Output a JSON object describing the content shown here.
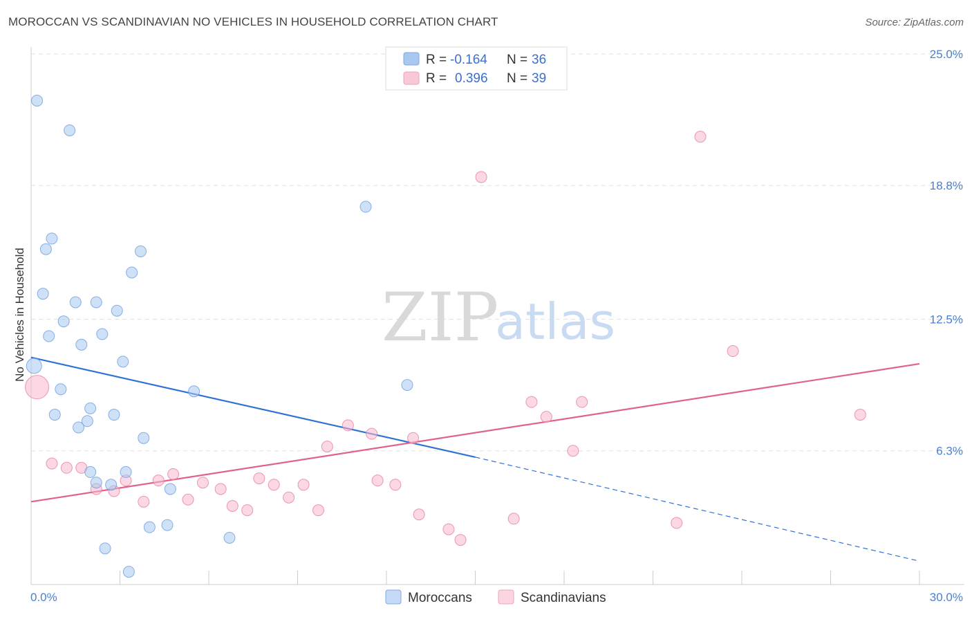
{
  "header": {
    "title": "MOROCCAN VS SCANDINAVIAN NO VEHICLES IN HOUSEHOLD CORRELATION CHART",
    "source": "Source: ZipAtlas.com"
  },
  "watermark": {
    "zip": "ZIP",
    "atlas": "atlas"
  },
  "legend": {
    "rows": [
      {
        "r_label": "R =",
        "r_value": "-0.164",
        "n_label": "N =",
        "n_value": "36",
        "color": "#a8c8f0"
      },
      {
        "r_label": "R =",
        "r_value": "0.396",
        "n_label": "N =",
        "n_value": "39",
        "color": "#f8b8cc"
      }
    ]
  },
  "bottom_legend": {
    "items": [
      {
        "label": "Moroccans",
        "color": "#a8c8f0"
      },
      {
        "label": "Scandinavians",
        "color": "#f8b8cc"
      }
    ]
  },
  "chart_data": {
    "type": "scatter",
    "title": "MOROCCAN VS SCANDINAVIAN NO VEHICLES IN HOUSEHOLD CORRELATION CHART",
    "xlabel": "",
    "ylabel": "No Vehicles in Household",
    "xlim": [
      0,
      30
    ],
    "ylim": [
      0,
      25
    ],
    "x_tick_labels": [
      "0.0%",
      "30.0%"
    ],
    "y_ticks": [
      6.3,
      12.5,
      18.8,
      25.0
    ],
    "y_tick_labels": [
      "6.3%",
      "12.5%",
      "18.8%",
      "25.0%"
    ],
    "grid": "horizontal dashed",
    "legend_position": "top-center",
    "series": [
      {
        "name": "Moroccans",
        "color": "#6b9ee0",
        "fill": "#a8c8f0",
        "trend": {
          "x": [
            0,
            15
          ],
          "y": [
            10.7,
            6.0
          ],
          "dashed_to": [
            30,
            1.1
          ]
        },
        "points": [
          {
            "x": 0.2,
            "y": 22.8
          },
          {
            "x": 1.3,
            "y": 21.4
          },
          {
            "x": 11.3,
            "y": 17.8
          },
          {
            "x": 0.7,
            "y": 16.3
          },
          {
            "x": 0.5,
            "y": 15.8
          },
          {
            "x": 3.7,
            "y": 15.7
          },
          {
            "x": 3.4,
            "y": 14.7
          },
          {
            "x": 0.4,
            "y": 13.7
          },
          {
            "x": 1.5,
            "y": 13.3
          },
          {
            "x": 2.2,
            "y": 13.3
          },
          {
            "x": 2.9,
            "y": 12.9
          },
          {
            "x": 1.1,
            "y": 12.4
          },
          {
            "x": 0.6,
            "y": 11.7
          },
          {
            "x": 2.4,
            "y": 11.8
          },
          {
            "x": 1.7,
            "y": 11.3
          },
          {
            "x": 3.1,
            "y": 10.5
          },
          {
            "x": 0.1,
            "y": 10.3
          },
          {
            "x": 12.7,
            "y": 9.4
          },
          {
            "x": 1.0,
            "y": 9.2
          },
          {
            "x": 5.5,
            "y": 9.1
          },
          {
            "x": 2.0,
            "y": 8.3
          },
          {
            "x": 0.8,
            "y": 8.0
          },
          {
            "x": 2.8,
            "y": 8.0
          },
          {
            "x": 1.9,
            "y": 7.7
          },
          {
            "x": 1.6,
            "y": 7.4
          },
          {
            "x": 3.8,
            "y": 6.9
          },
          {
            "x": 3.2,
            "y": 5.3
          },
          {
            "x": 2.0,
            "y": 5.3
          },
          {
            "x": 2.2,
            "y": 4.8
          },
          {
            "x": 2.7,
            "y": 4.7
          },
          {
            "x": 4.7,
            "y": 4.5
          },
          {
            "x": 4.0,
            "y": 2.7
          },
          {
            "x": 4.6,
            "y": 2.8
          },
          {
            "x": 6.7,
            "y": 2.2
          },
          {
            "x": 2.5,
            "y": 1.7
          },
          {
            "x": 3.3,
            "y": 0.6
          }
        ]
      },
      {
        "name": "Scandinavians",
        "color": "#e8809f",
        "fill": "#f8b8cc",
        "trend": {
          "x": [
            0,
            30
          ],
          "y": [
            3.9,
            10.4
          ]
        },
        "points": [
          {
            "x": 22.6,
            "y": 21.1
          },
          {
            "x": 15.2,
            "y": 19.2
          },
          {
            "x": 23.7,
            "y": 11.0
          },
          {
            "x": 0.2,
            "y": 9.3
          },
          {
            "x": 16.9,
            "y": 8.6
          },
          {
            "x": 18.6,
            "y": 8.6
          },
          {
            "x": 28.0,
            "y": 8.0
          },
          {
            "x": 17.4,
            "y": 7.9
          },
          {
            "x": 10.7,
            "y": 7.5
          },
          {
            "x": 11.5,
            "y": 7.1
          },
          {
            "x": 12.9,
            "y": 6.9
          },
          {
            "x": 10.0,
            "y": 6.5
          },
          {
            "x": 18.3,
            "y": 6.3
          },
          {
            "x": 0.7,
            "y": 5.7
          },
          {
            "x": 1.2,
            "y": 5.5
          },
          {
            "x": 1.7,
            "y": 5.5
          },
          {
            "x": 4.8,
            "y": 5.2
          },
          {
            "x": 7.7,
            "y": 5.0
          },
          {
            "x": 3.2,
            "y": 4.9
          },
          {
            "x": 4.3,
            "y": 4.9
          },
          {
            "x": 5.8,
            "y": 4.8
          },
          {
            "x": 11.7,
            "y": 4.9
          },
          {
            "x": 12.3,
            "y": 4.7
          },
          {
            "x": 8.2,
            "y": 4.7
          },
          {
            "x": 9.2,
            "y": 4.7
          },
          {
            "x": 2.2,
            "y": 4.5
          },
          {
            "x": 6.4,
            "y": 4.5
          },
          {
            "x": 2.8,
            "y": 4.4
          },
          {
            "x": 8.7,
            "y": 4.1
          },
          {
            "x": 5.3,
            "y": 4.0
          },
          {
            "x": 3.8,
            "y": 3.9
          },
          {
            "x": 6.8,
            "y": 3.7
          },
          {
            "x": 7.3,
            "y": 3.5
          },
          {
            "x": 9.7,
            "y": 3.5
          },
          {
            "x": 13.1,
            "y": 3.3
          },
          {
            "x": 16.3,
            "y": 3.1
          },
          {
            "x": 21.8,
            "y": 2.9
          },
          {
            "x": 14.1,
            "y": 2.6
          },
          {
            "x": 14.5,
            "y": 2.1
          }
        ]
      }
    ]
  }
}
